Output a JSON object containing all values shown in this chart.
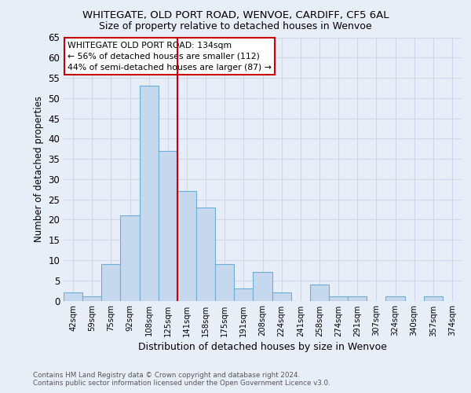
{
  "title1": "WHITEGATE, OLD PORT ROAD, WENVOE, CARDIFF, CF5 6AL",
  "title2": "Size of property relative to detached houses in Wenvoe",
  "xlabel": "Distribution of detached houses by size in Wenvoe",
  "ylabel": "Number of detached properties",
  "categories": [
    "42sqm",
    "59sqm",
    "75sqm",
    "92sqm",
    "108sqm",
    "125sqm",
    "141sqm",
    "158sqm",
    "175sqm",
    "191sqm",
    "208sqm",
    "224sqm",
    "241sqm",
    "258sqm",
    "274sqm",
    "291sqm",
    "307sqm",
    "324sqm",
    "340sqm",
    "357sqm",
    "374sqm"
  ],
  "values": [
    2,
    1,
    9,
    21,
    53,
    37,
    27,
    23,
    9,
    3,
    7,
    2,
    0,
    4,
    1,
    1,
    0,
    1,
    0,
    1,
    0
  ],
  "bar_color": "#c5d8ee",
  "bar_edge_color": "#6baed6",
  "vline_color": "#cc0000",
  "annotation_title": "WHITEGATE OLD PORT ROAD: 134sqm",
  "annotation_line1": "← 56% of detached houses are smaller (112)",
  "annotation_line2": "44% of semi-detached houses are larger (87) →",
  "annotation_box_color": "#ffffff",
  "annotation_box_edge": "#cc0000",
  "grid_color": "#d0d8e8",
  "bg_color": "#e8eef8",
  "footer1": "Contains HM Land Registry data © Crown copyright and database right 2024.",
  "footer2": "Contains public sector information licensed under the Open Government Licence v3.0.",
  "ylim": [
    0,
    65
  ],
  "yticks": [
    0,
    5,
    10,
    15,
    20,
    25,
    30,
    35,
    40,
    45,
    50,
    55,
    60,
    65
  ]
}
